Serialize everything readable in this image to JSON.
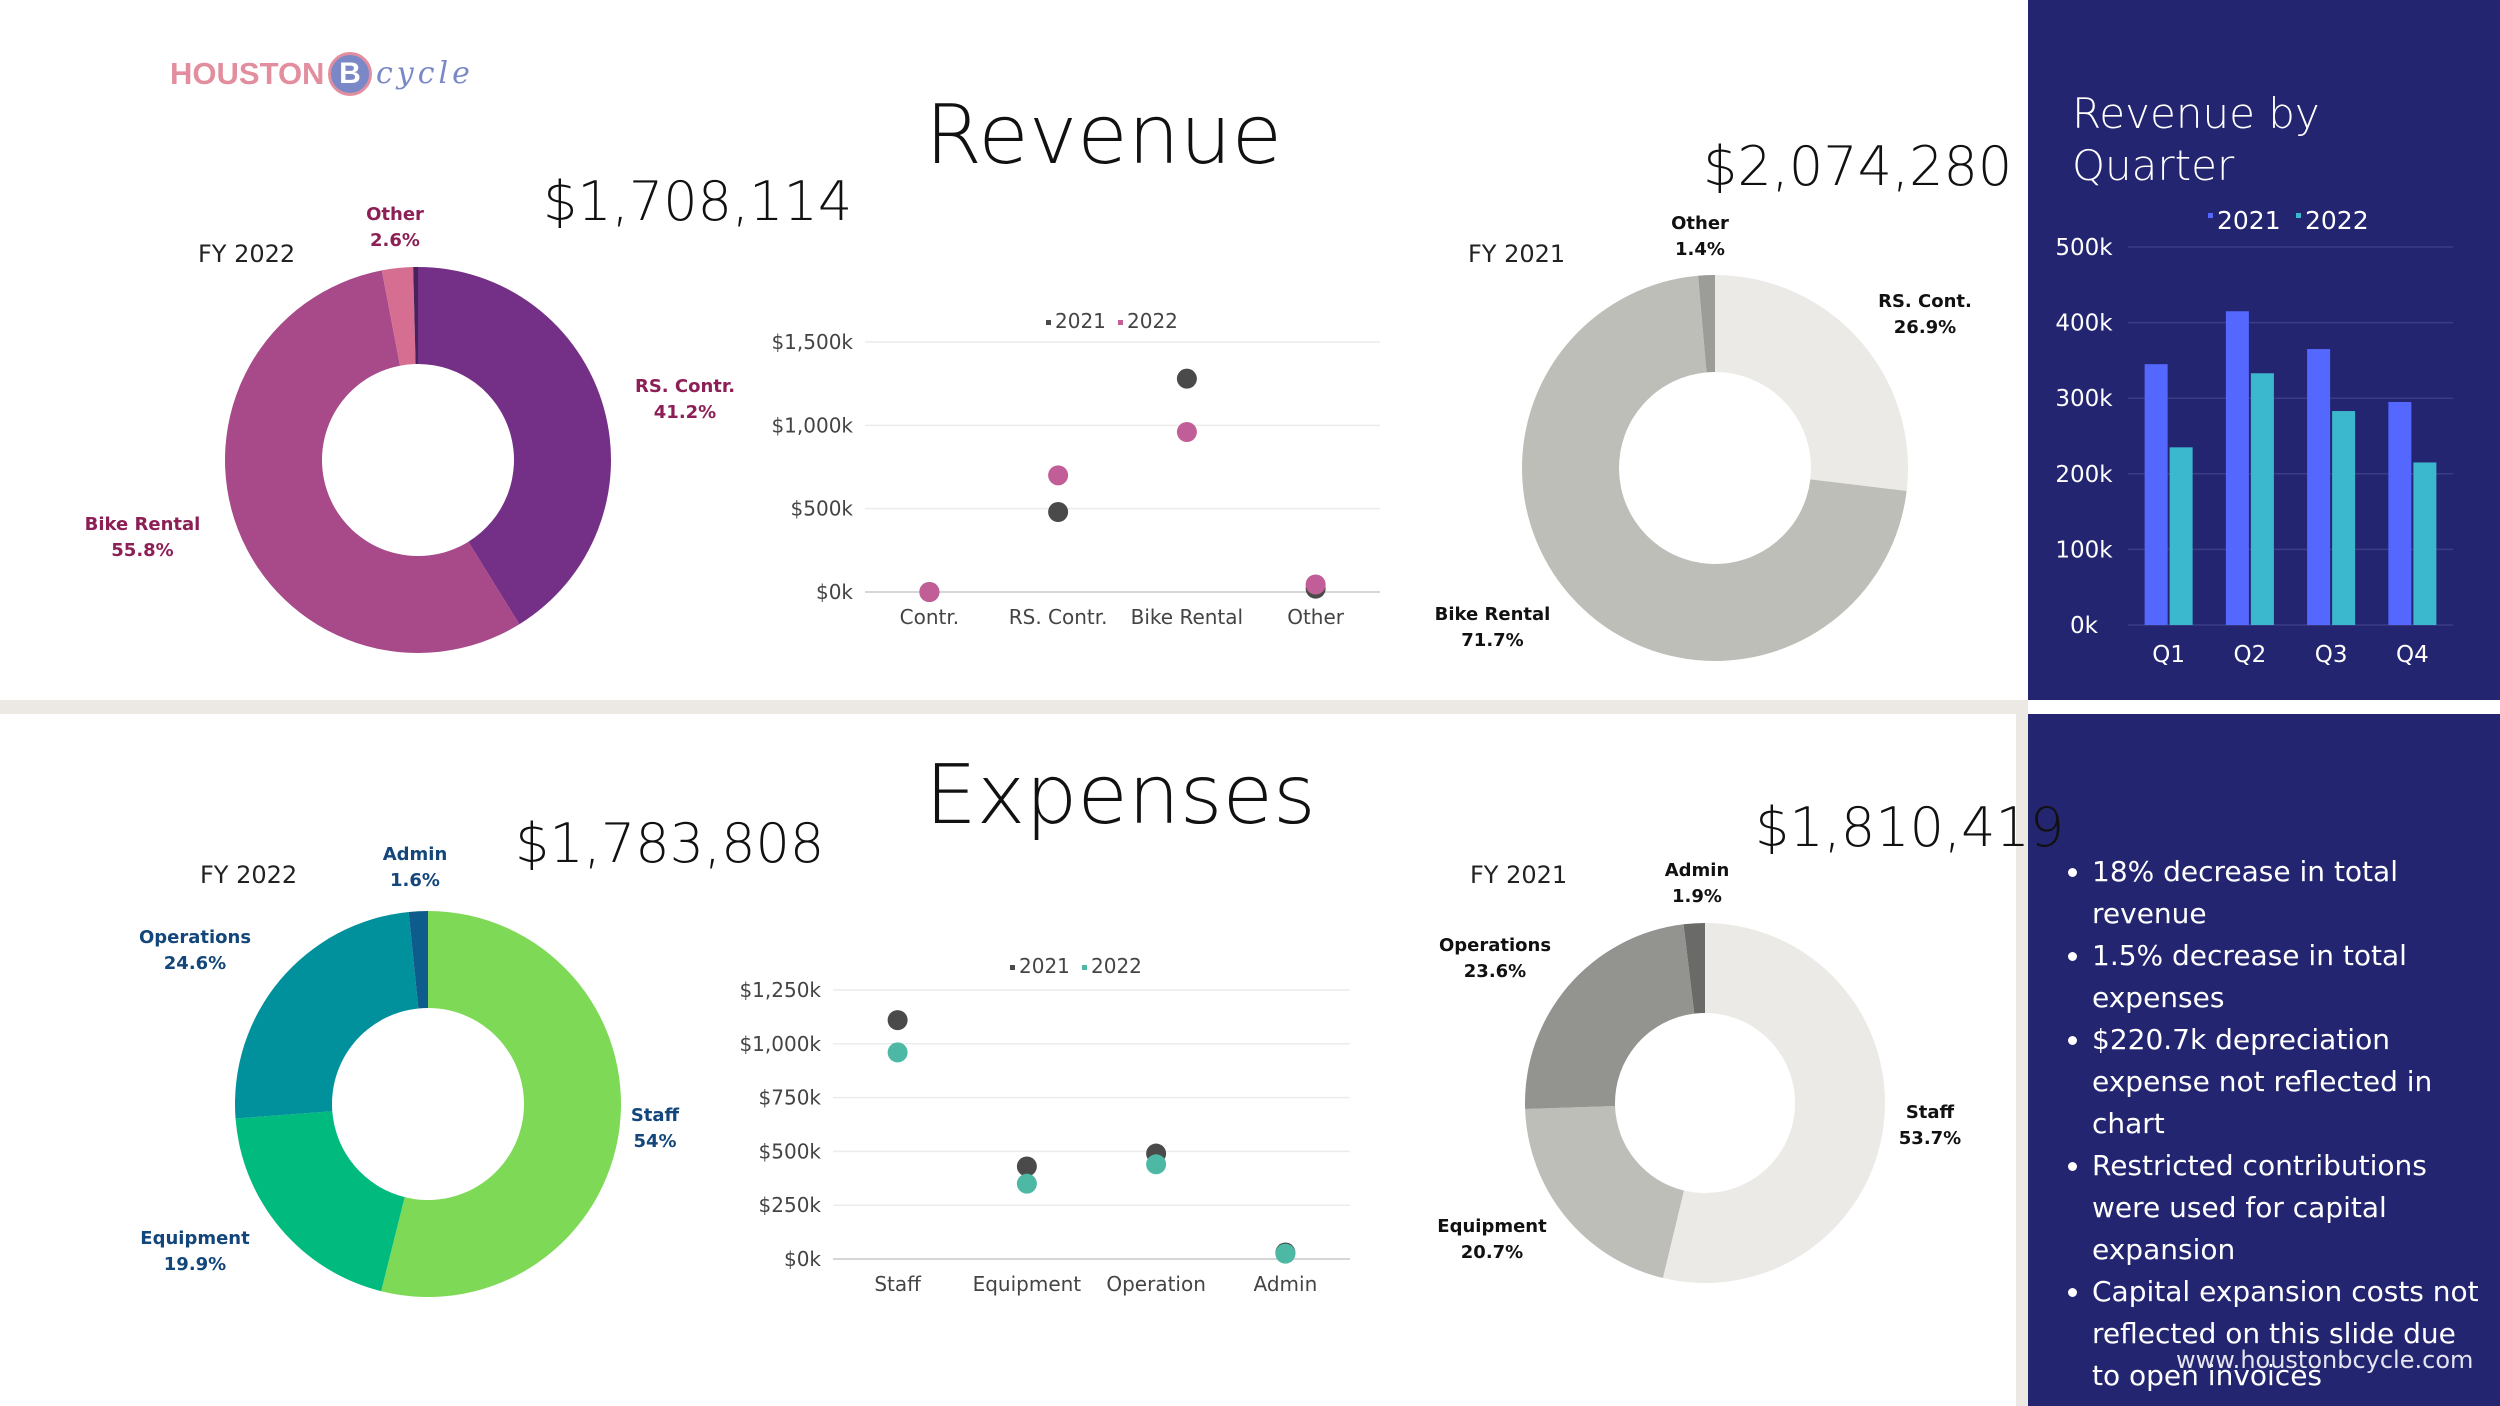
{
  "logo": {
    "text": "HOUSTON",
    "letter": "B",
    "script": "cycle"
  },
  "revenue": {
    "title": "Revenue",
    "fy2022": {
      "label": "FY 2022",
      "total": "$1,708,114",
      "slices": [
        {
          "name": "RS. Contr.",
          "pct_text": "41.2%",
          "value": 41.2,
          "color": "#742F86"
        },
        {
          "name": "Bike Rental",
          "pct_text": "55.8%",
          "value": 55.8,
          "color": "#A84A8A"
        },
        {
          "name": "Other",
          "pct_text": "2.6%",
          "value": 2.6,
          "color": "#D56E90"
        },
        {
          "name": "",
          "pct_text": "",
          "value": 0.4,
          "color": "#46245A"
        }
      ]
    },
    "fy2021": {
      "label": "FY 2021",
      "total": "$2,074,280",
      "slices": [
        {
          "name": "RS. Cont.",
          "pct_text": "26.9%",
          "value": 26.9,
          "color": "#ECEAE6"
        },
        {
          "name": "Bike Rental",
          "pct_text": "71.7%",
          "value": 71.7,
          "color": "#BEBEB8"
        },
        {
          "name": "Other",
          "pct_text": "1.4%",
          "value": 1.4,
          "color": "#9C9C98"
        }
      ]
    },
    "compare": {
      "legend": [
        "2021",
        "2022"
      ],
      "colors": [
        "#4A4A4A",
        "#C15E98"
      ],
      "categories": [
        "Contr.",
        "RS. Contr.",
        "Bike Rental",
        "Other"
      ],
      "series": [
        {
          "name": "2021",
          "values": [
            0,
            480,
            1280,
            20
          ]
        },
        {
          "name": "2022",
          "values": [
            0,
            700,
            960,
            45
          ]
        }
      ],
      "yticks": [
        "$0k",
        "$500k",
        "$1,000k",
        "$1,500k"
      ],
      "ylim": [
        0,
        1500
      ]
    }
  },
  "quarter": {
    "title_line1": "Revenue by",
    "title_line2": "Quarter",
    "legend": [
      "2021",
      "2022"
    ],
    "colors": [
      "#5468FF",
      "#3CB8CE"
    ],
    "categories": [
      "Q1",
      "Q2",
      "Q3",
      "Q4"
    ],
    "series": [
      {
        "name": "2021",
        "values": [
          345000,
          415000,
          365000,
          295000
        ]
      },
      {
        "name": "2022",
        "values": [
          235000,
          333000,
          283000,
          215000
        ]
      }
    ],
    "yticks": [
      "0k",
      "100k",
      "200k",
      "300k",
      "400k",
      "500k"
    ],
    "ylim": [
      0,
      500000
    ]
  },
  "expenses": {
    "title": "Expenses",
    "fy2022": {
      "label": "FY 2022",
      "total": "$1,783,808",
      "slices": [
        {
          "name": "Staff",
          "pct_text": "54%",
          "value": 53.9,
          "color": "#7ED957"
        },
        {
          "name": "Equipment",
          "pct_text": "19.9%",
          "value": 19.9,
          "color": "#00BA7E"
        },
        {
          "name": "Operations",
          "pct_text": "24.6%",
          "value": 24.6,
          "color": "#00919C"
        },
        {
          "name": "Admin",
          "pct_text": "1.6%",
          "value": 1.6,
          "color": "#0E5C8C"
        }
      ]
    },
    "fy2021": {
      "label": "FY 2021",
      "total": "$1,810,419",
      "slices": [
        {
          "name": "Staff",
          "pct_text": "53.7%",
          "value": 53.7,
          "color": "#ECEAE6"
        },
        {
          "name": "Equipment",
          "pct_text": "20.7%",
          "value": 20.7,
          "color": "#BEBEB8"
        },
        {
          "name": "Operations",
          "pct_text": "23.6%",
          "value": 23.6,
          "color": "#939390"
        },
        {
          "name": "Admin",
          "pct_text": "1.9%",
          "value": 1.9,
          "color": "#6A6A68"
        }
      ]
    },
    "compare": {
      "legend": [
        "2021",
        "2022"
      ],
      "colors": [
        "#4A4A4A",
        "#4DB8A4"
      ],
      "categories": [
        "Staff",
        "Equipment",
        "Operation",
        "Admin"
      ],
      "series": [
        {
          "name": "2021",
          "values": [
            1110,
            430,
            490,
            30
          ]
        },
        {
          "name": "2022",
          "values": [
            960,
            350,
            440,
            25
          ]
        }
      ],
      "yticks": [
        "$0k",
        "$250k",
        "$500k",
        "$750k",
        "$1,000k",
        "$1,250k"
      ],
      "ylim": [
        0,
        1250
      ]
    }
  },
  "notes": [
    "18% decrease in total revenue",
    "1.5% decrease in total expenses",
    "$220.7k depreciation expense not reflected in chart",
    "Restricted contributions were used for capital expansion",
    "Capital expansion costs not reflected on this slide due to open invoices"
  ],
  "url": "www.houstonbcycle.com"
}
